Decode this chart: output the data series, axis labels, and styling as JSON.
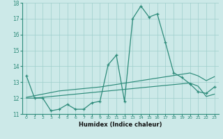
{
  "x": [
    0,
    1,
    2,
    3,
    4,
    5,
    6,
    7,
    8,
    9,
    10,
    11,
    12,
    13,
    14,
    15,
    16,
    17,
    18,
    19,
    20,
    21,
    22,
    23
  ],
  "y_main": [
    13.4,
    12.0,
    12.0,
    11.2,
    11.3,
    11.6,
    11.3,
    11.3,
    11.7,
    11.8,
    14.1,
    14.7,
    11.8,
    17.0,
    17.8,
    17.1,
    17.3,
    15.5,
    13.6,
    13.3,
    12.9,
    12.4,
    12.3,
    12.7
  ],
  "y_line2": [
    12.05,
    12.15,
    12.25,
    12.35,
    12.45,
    12.5,
    12.55,
    12.6,
    12.65,
    12.7,
    12.78,
    12.86,
    12.94,
    13.02,
    13.1,
    13.18,
    13.26,
    13.34,
    13.42,
    13.5,
    13.58,
    13.4,
    13.1,
    13.35
  ],
  "y_line3": [
    12.0,
    12.0,
    12.05,
    12.1,
    12.15,
    12.2,
    12.25,
    12.3,
    12.35,
    12.4,
    12.45,
    12.5,
    12.55,
    12.6,
    12.65,
    12.7,
    12.75,
    12.8,
    12.85,
    12.9,
    12.95,
    12.75,
    12.1,
    12.25
  ],
  "line_color": "#2d8b7a",
  "bg_color": "#cce9e8",
  "grid_color": "#9fcfcc",
  "xlabel": "Humidex (Indice chaleur)",
  "ylim": [
    11.0,
    18.0
  ],
  "xlim": [
    -0.5,
    23.5
  ],
  "yticks": [
    11,
    12,
    13,
    14,
    15,
    16,
    17,
    18
  ],
  "xticks": [
    0,
    1,
    2,
    3,
    4,
    5,
    6,
    7,
    8,
    9,
    10,
    11,
    12,
    13,
    14,
    15,
    16,
    17,
    18,
    19,
    20,
    21,
    22,
    23
  ]
}
